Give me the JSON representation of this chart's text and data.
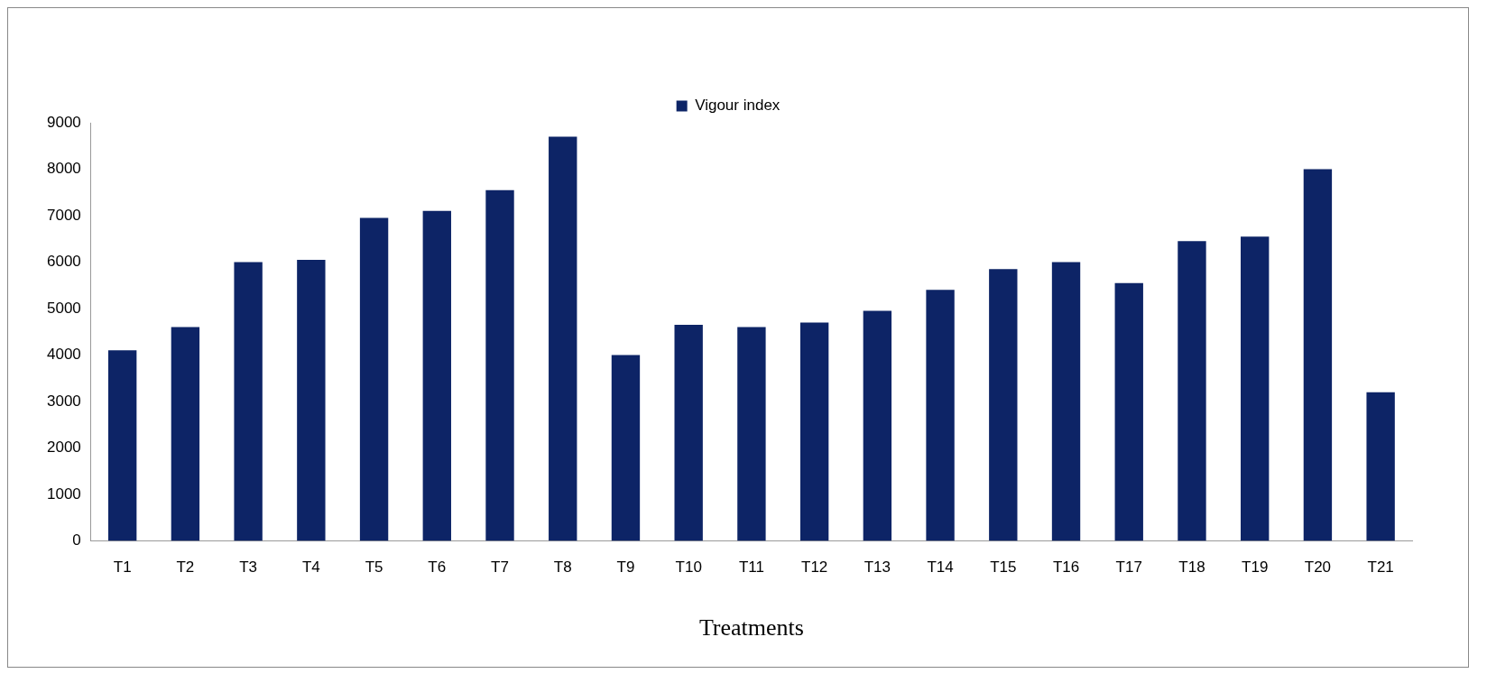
{
  "chart_data": {
    "type": "bar",
    "xlabel": "Treatments",
    "categories": [
      "T1",
      "T2",
      "T3",
      "T4",
      "T5",
      "T6",
      "T7",
      "T8",
      "T9",
      "T10",
      "T11",
      "T12",
      "T13",
      "T14",
      "T15",
      "T16",
      "T17",
      "T18",
      "T19",
      "T20",
      "T21"
    ],
    "series": [
      {
        "name": "Vigour index",
        "color": "#0d2466",
        "values": [
          4100,
          4600,
          6000,
          6050,
          6950,
          7100,
          7550,
          8700,
          4000,
          4650,
          4600,
          4700,
          4950,
          5400,
          5850,
          6000,
          5550,
          6450,
          6550,
          8000,
          3200
        ]
      }
    ],
    "ylim": [
      0,
      9000
    ],
    "yticks": [
      0,
      1000,
      2000,
      3000,
      4000,
      5000,
      6000,
      7000,
      8000,
      9000
    ],
    "grid": false,
    "legend": "top"
  }
}
